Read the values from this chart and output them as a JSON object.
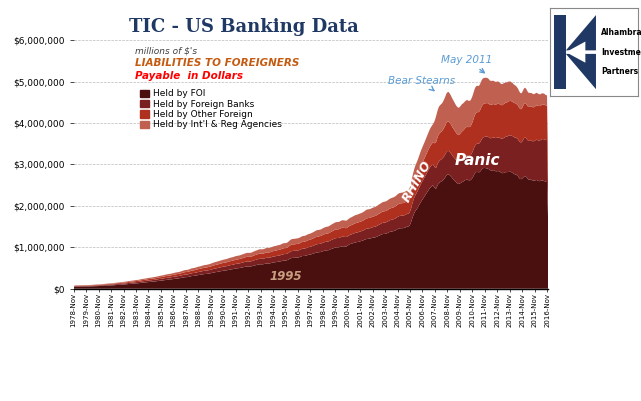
{
  "title": "TIC - US Banking Data",
  "subtitle_line1": "millions of $'s",
  "subtitle_line2": "LIABILITIES TO FOREIGNERS",
  "subtitle_line3": "Payable  in Dollars",
  "legend_labels": [
    "Held by FOI",
    "Held by Foreign Banks",
    "Held by Other Foreign",
    "Held by Int'l & Reg Agencies"
  ],
  "colors_stack": [
    "#4a1010",
    "#7b2020",
    "#b03020",
    "#c06050"
  ],
  "ylim": [
    0,
    6000000
  ],
  "yticks": [
    0,
    1000000,
    2000000,
    3000000,
    4000000,
    5000000,
    6000000
  ],
  "ytick_labels": [
    "$0",
    "$1,000,000",
    "$2,000,000",
    "$3,000,000",
    "$4,000,000",
    "$5,000,000",
    "$6,000,000"
  ],
  "annotation_1995": "1995",
  "annotation_rhino": "RHINO",
  "annotation_panic": "Panic",
  "annotation_bear": "Bear Stearns",
  "annotation_may2011": "May 2011",
  "bg_color": "#ffffff",
  "title_color": "#1f3864",
  "subtitle1_color": "#404040",
  "subtitle2_color": "#c55a11",
  "subtitle3_color": "#ff0000",
  "arrow_color": "#5b9bd5",
  "annotation_color": "#5b9bd5"
}
